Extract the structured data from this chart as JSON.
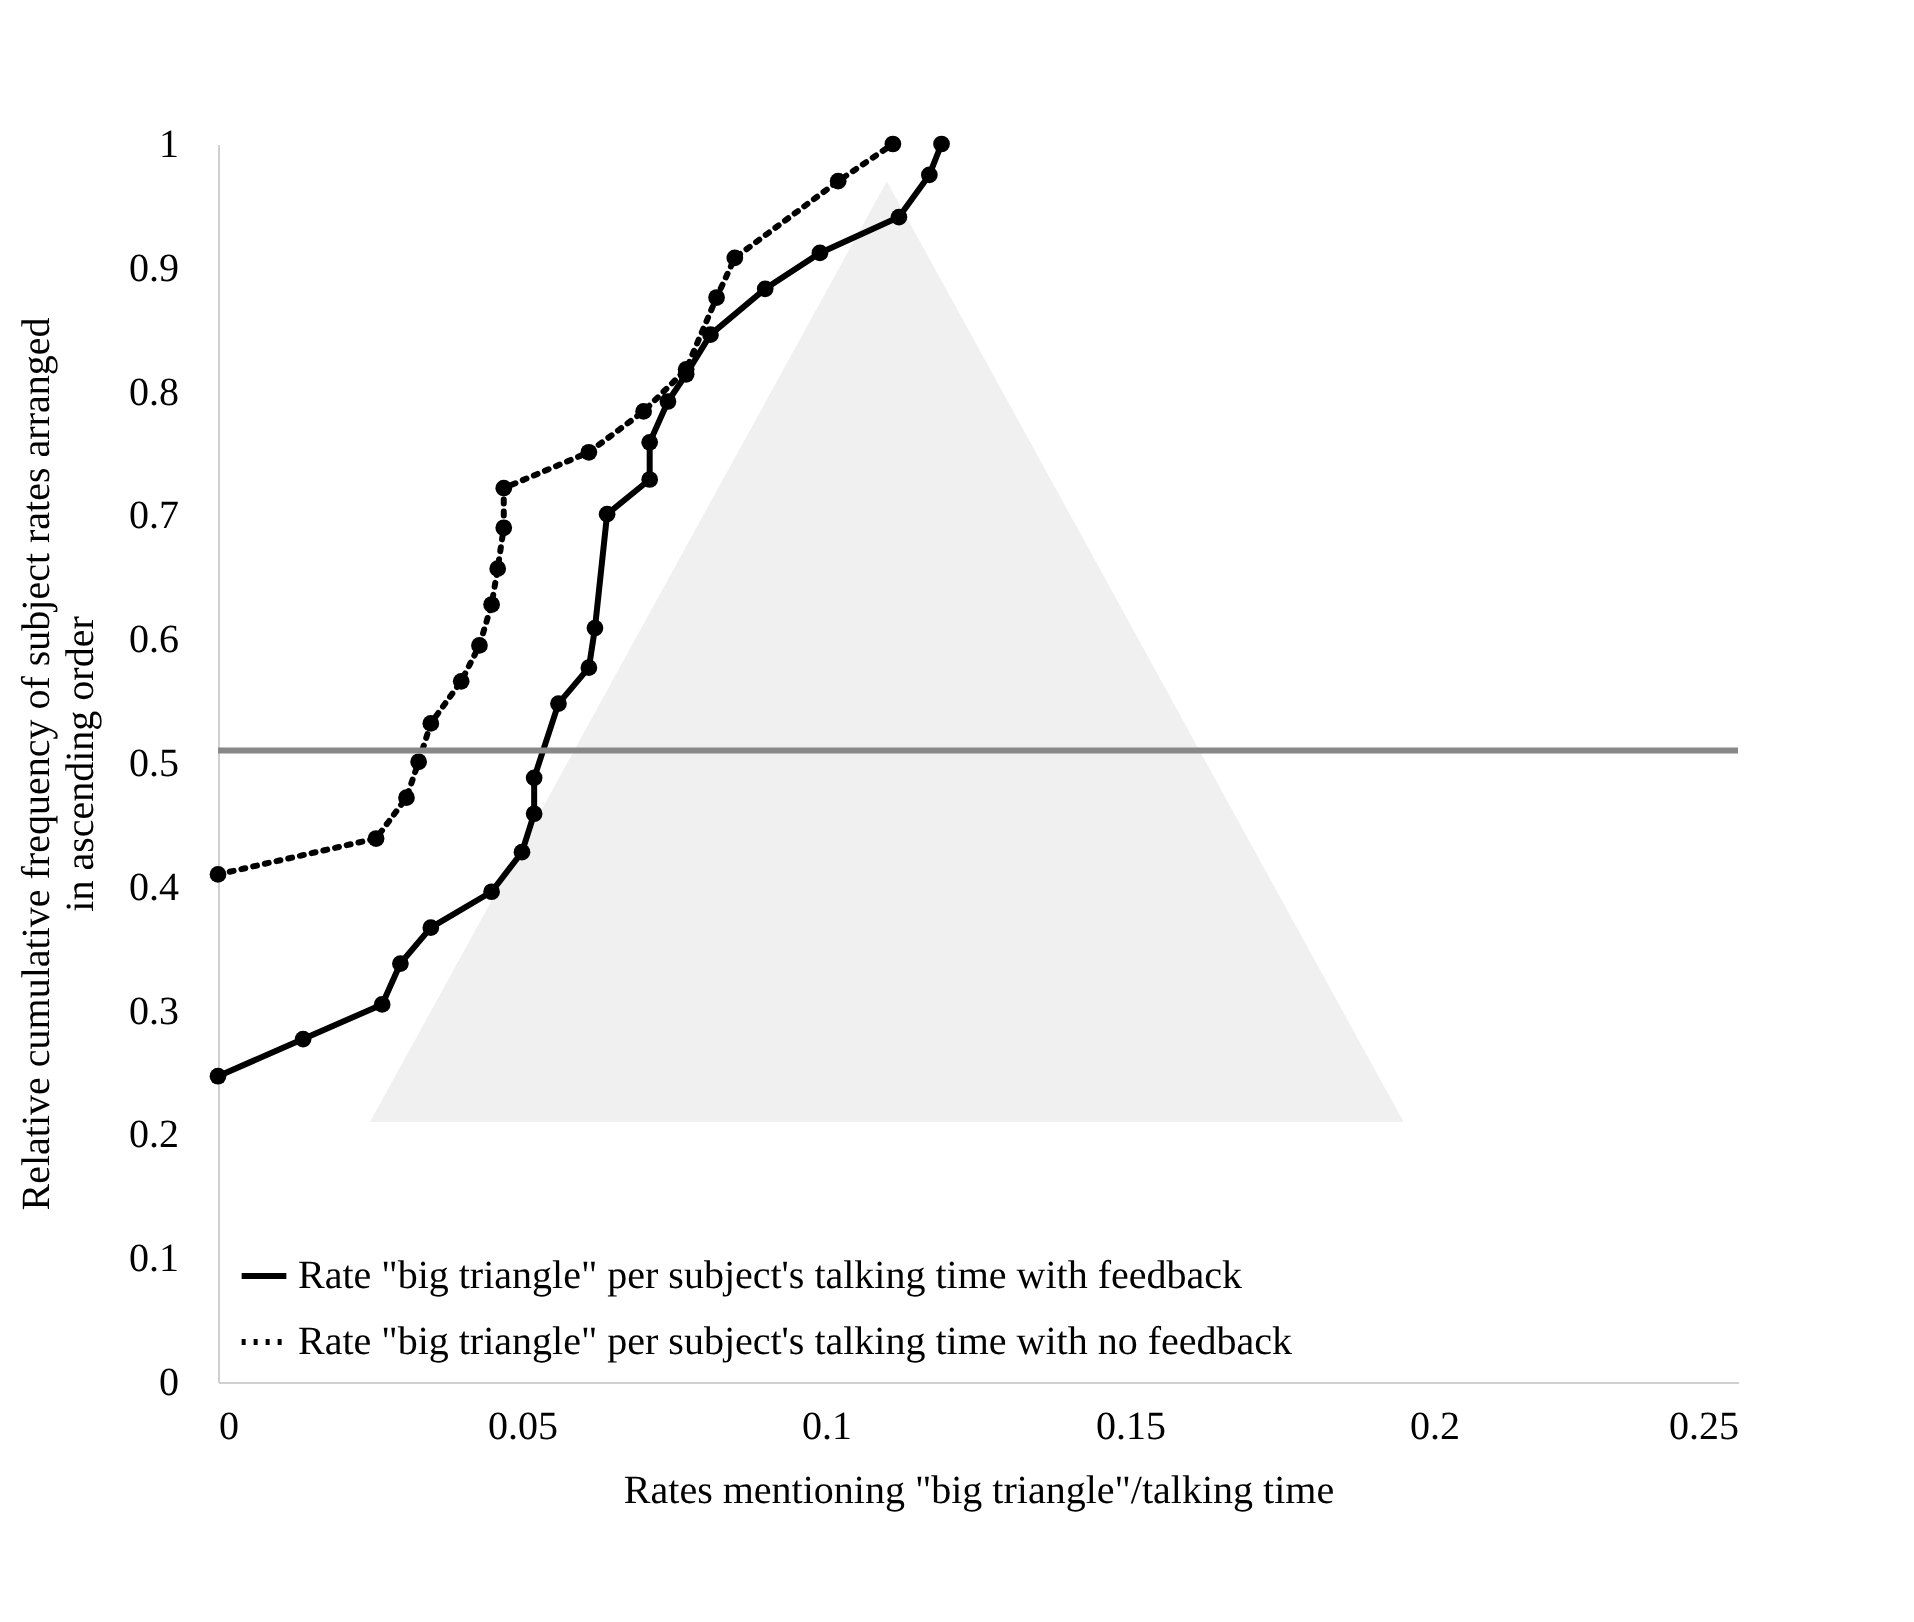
{
  "chart_data": {
    "type": "line",
    "xlabel": "Rates mentioning \"big triangle\"/talking time",
    "ylabel": "Relative cumulative frequency of subject rates arranged in ascending order",
    "xlim": [
      0,
      0.25
    ],
    "xticks": [
      0,
      0.05,
      0.1,
      0.15,
      0.2,
      0.25
    ],
    "ylim": [
      0,
      1
    ],
    "yticks": [
      0,
      0.1,
      0.2,
      0.3,
      0.4,
      0.5,
      0.6,
      0.7,
      0.8,
      0.9,
      1
    ],
    "grid": false,
    "legend": "bottom left",
    "marker": "circle",
    "ref_lines": [
      {
        "axis": "y",
        "value": 0.51,
        "color": "#888888"
      }
    ],
    "series": [
      {
        "name": "Rate \"big triangle\" per subject's talking time with feedback",
        "color": "#000000",
        "line_style": "solid",
        "x": [
          0,
          0.014,
          0.027,
          0.03,
          0.035,
          0.045,
          0.05,
          0.052,
          0.052,
          0.056,
          0.061,
          0.062,
          0.064,
          0.071,
          0.071,
          0.074,
          0.077,
          0.081,
          0.09,
          0.099,
          0.112,
          0.117,
          0.119
        ],
        "values": [
          0.247,
          0.277,
          0.305,
          0.338,
          0.367,
          0.396,
          0.428,
          0.459,
          0.488,
          0.548,
          0.577,
          0.609,
          0.701,
          0.729,
          0.759,
          0.792,
          0.814,
          0.846,
          0.883,
          0.912,
          0.941,
          0.975,
          1.0
        ]
      },
      {
        "name": "Rate \"big triangle\" per subject's talking time with no feedback",
        "color": "#000000",
        "line_style": "dotted",
        "x": [
          0,
          0.026,
          0.031,
          0.033,
          0.035,
          0.04,
          0.043,
          0.045,
          0.046,
          0.047,
          0.047,
          0.061,
          0.07,
          0.077,
          0.082,
          0.085,
          0.102,
          0.111
        ],
        "values": [
          0.41,
          0.439,
          0.472,
          0.501,
          0.532,
          0.566,
          0.595,
          0.628,
          0.657,
          0.69,
          0.722,
          0.751,
          0.784,
          0.818,
          0.876,
          0.908,
          0.97,
          1.0
        ]
      }
    ]
  }
}
